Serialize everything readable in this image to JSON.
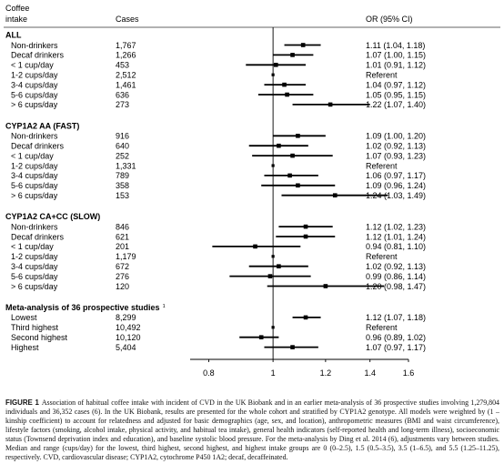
{
  "header": {
    "col1": [
      "Coffee",
      "intake"
    ],
    "col2": "Cases",
    "col3": "OR (95% CI)"
  },
  "chart_data": {
    "type": "forest",
    "xscale": "log",
    "xlim": [
      0.75,
      1.6
    ],
    "xticks": [
      0.8,
      1,
      1.2,
      1.4,
      1.6
    ],
    "reference_line": 1,
    "groups": [
      {
        "title": "ALL",
        "rows": [
          {
            "label": "Non-drinkers",
            "cases": "1,767",
            "or": 1.11,
            "lo": 1.04,
            "hi": 1.18,
            "text": "1.11 (1.04, 1.18)"
          },
          {
            "label": "Decaf drinkers",
            "cases": "1,266",
            "or": 1.07,
            "lo": 1.0,
            "hi": 1.15,
            "text": "1.07 (1.00, 1.15)"
          },
          {
            "label": "< 1 cup/day",
            "cases": "453",
            "or": 1.01,
            "lo": 0.91,
            "hi": 1.12,
            "text": "1.01 (0.91, 1.12)"
          },
          {
            "label": "1-2 cups/day",
            "cases": "2,512",
            "or": 1.0,
            "ref": true,
            "text": "Referent"
          },
          {
            "label": "3-4 cups/day",
            "cases": "1,461",
            "or": 1.04,
            "lo": 0.97,
            "hi": 1.12,
            "text": "1.04 (0.97, 1.12)"
          },
          {
            "label": "5-6 cups/day",
            "cases": "636",
            "or": 1.05,
            "lo": 0.95,
            "hi": 1.15,
            "text": "1.05 (0.95, 1.15)"
          },
          {
            "label": "> 6 cups/day",
            "cases": "273",
            "or": 1.22,
            "lo": 1.07,
            "hi": 1.4,
            "text": "1.22 (1.07, 1.40)"
          }
        ]
      },
      {
        "title": "CYP1A2 AA (FAST)",
        "rows": [
          {
            "label": "Non-drinkers",
            "cases": "916",
            "or": 1.09,
            "lo": 1.0,
            "hi": 1.2,
            "text": "1.09 (1.00, 1.20)"
          },
          {
            "label": "Decaf drinkers",
            "cases": "640",
            "or": 1.02,
            "lo": 0.92,
            "hi": 1.13,
            "text": "1.02 (0.92, 1.13)"
          },
          {
            "label": "< 1 cup/day",
            "cases": "252",
            "or": 1.07,
            "lo": 0.93,
            "hi": 1.23,
            "text": "1.07 (0.93, 1.23)"
          },
          {
            "label": "1-2 cups/day",
            "cases": "1,331",
            "or": 1.0,
            "ref": true,
            "text": "Referent"
          },
          {
            "label": "3-4 cups/day",
            "cases": "789",
            "or": 1.06,
            "lo": 0.97,
            "hi": 1.17,
            "text": "1.06 (0.97, 1.17)"
          },
          {
            "label": "5-6 cups/day",
            "cases": "358",
            "or": 1.09,
            "lo": 0.96,
            "hi": 1.24,
            "text": "1.09 (0.96, 1.24)"
          },
          {
            "label": "> 6 cups/day",
            "cases": "153",
            "or": 1.24,
            "lo": 1.03,
            "hi": 1.49,
            "text": "1.24 (1.03, 1.49)"
          }
        ]
      },
      {
        "title": "CYP1A2 CA+CC (SLOW)",
        "rows": [
          {
            "label": "Non-drinkers",
            "cases": "846",
            "or": 1.12,
            "lo": 1.02,
            "hi": 1.23,
            "text": "1.12 (1.02, 1.23)"
          },
          {
            "label": "Decaf drinkers",
            "cases": "621",
            "or": 1.12,
            "lo": 1.01,
            "hi": 1.24,
            "text": "1.12 (1.01, 1.24)"
          },
          {
            "label": "< 1 cup/day",
            "cases": "201",
            "or": 0.94,
            "lo": 0.81,
            "hi": 1.1,
            "text": "0.94 (0.81, 1.10)"
          },
          {
            "label": "1-2 cups/day",
            "cases": "1,179",
            "or": 1.0,
            "ref": true,
            "text": "Referent"
          },
          {
            "label": "3-4 cups/day",
            "cases": "672",
            "or": 1.02,
            "lo": 0.92,
            "hi": 1.13,
            "text": "1.02 (0.92, 1.13)"
          },
          {
            "label": "5-6 cups/day",
            "cases": "276",
            "or": 0.99,
            "lo": 0.86,
            "hi": 1.14,
            "text": "0.99 (0.86, 1.14)"
          },
          {
            "label": "> 6 cups/day",
            "cases": "120",
            "or": 1.2,
            "lo": 0.98,
            "hi": 1.47,
            "text": "1.20 (0.98, 1.47)"
          }
        ]
      },
      {
        "title": "Meta-analysis of 36 prospective studies",
        "title_sup": "1",
        "rows": [
          {
            "label": "Lowest",
            "cases": "8,299",
            "or": 1.12,
            "lo": 1.07,
            "hi": 1.18,
            "text": "1.12 (1.07, 1.18)"
          },
          {
            "label": "Third highest",
            "cases": "10,492",
            "or": 1.0,
            "ref": true,
            "text": "Referent"
          },
          {
            "label": "Second highest",
            "cases": "10,120",
            "or": 0.96,
            "lo": 0.89,
            "hi": 1.02,
            "text": "0.96 (0.89, 1.02)"
          },
          {
            "label": "Highest",
            "cases": "5,404",
            "or": 1.07,
            "lo": 0.97,
            "hi": 1.17,
            "text": "1.07 (0.97, 1.17)"
          }
        ]
      }
    ]
  },
  "caption": {
    "label": "FIGURE 1",
    "text": "Association of habitual coffee intake with incident of CVD in the UK Biobank and in an earlier meta-analysis of 36 prospective studies involving 1,279,804 individuals and 36,352 cases (6). In the UK Biobank, results are presented for the whole cohort and stratified by CYP1A2 genotype. All models were weighted by (1 – kinship coefficient) to account for relatedness and adjusted for basic demographics (age, sex, and location), anthropometric measures (BMI and waist circumference), lifestyle factors (smoking, alcohol intake, physical activity, and habitual tea intake), general health indicators (self-reported health and long-term illness), socioeconomic status (Townsend deprivation index and education), and baseline systolic blood pressure. For the meta-analysis by Ding et al. 2014 (6), adjustments vary between studies. Median and range (cups/day) for the lowest, third highest, second highest, and highest intake groups are 0 (0–2.5), 1.5 (0.5–3.5), 3.5 (1–6.5), and 5.5 (1.25–11.25), respectively. CVD, cardiovascular disease; CYP1A2, cytochrome P450 1A2; decaf, decaffeinated."
  }
}
